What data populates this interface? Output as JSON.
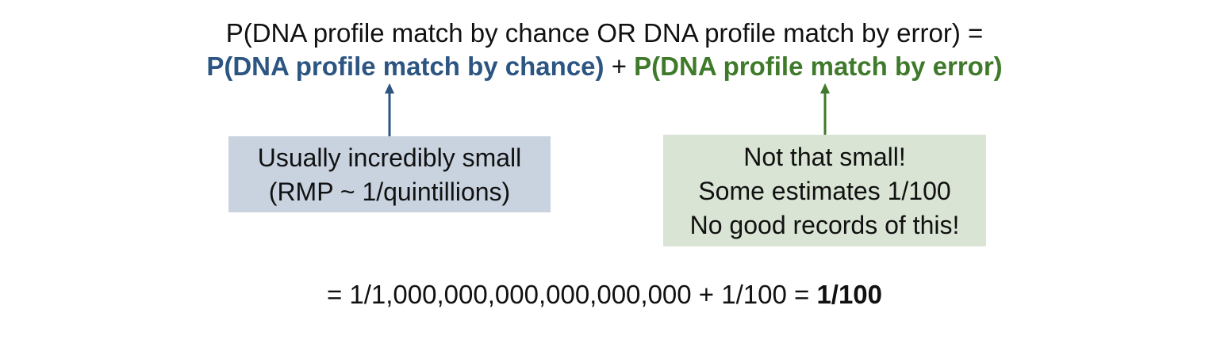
{
  "equation": {
    "line1": "P(DNA profile match by chance OR DNA profile match by error) =",
    "chance_term": "P(DNA profile match by chance)",
    "plus": "+",
    "error_term": "P(DNA profile match by error)"
  },
  "boxes": {
    "chance": {
      "lines": [
        "Usually incredibly small",
        "(RMP ~ 1/quintillions)"
      ]
    },
    "error": {
      "lines": [
        "Not that small!",
        "Some estimates 1/100",
        "No good records of this!"
      ]
    }
  },
  "result": {
    "expression": "= 1/1,000,000,000,000,000,000 + 1/100 = ",
    "answer": "1/100"
  },
  "colors": {
    "chance": "#2c5582",
    "error": "#3f7a2b",
    "chance_box": "#c8d3df",
    "error_box": "#d9e4d4"
  }
}
